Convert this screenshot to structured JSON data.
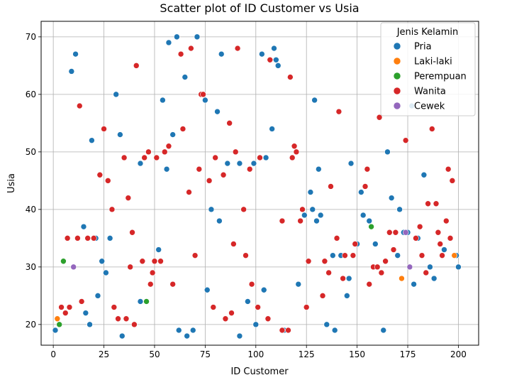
{
  "chart_data": {
    "type": "scatter",
    "title": "Scatter plot of ID Customer vs Usia",
    "xlabel": "ID Customer",
    "ylabel": "Usia",
    "xlim": [
      -6,
      210
    ],
    "ylim": [
      16.4,
      72.7
    ],
    "xticks": [
      0,
      25,
      50,
      75,
      100,
      125,
      150,
      175,
      200
    ],
    "yticks": [
      20,
      30,
      40,
      50,
      60,
      70
    ],
    "grid": true,
    "legend": {
      "title": "Jenis Kelamin",
      "placement": "top-right"
    },
    "series": [
      {
        "name": "Pria",
        "color": "#1f77b4",
        "points": [
          [
            1,
            19
          ],
          [
            9,
            64
          ],
          [
            11,
            67
          ],
          [
            15,
            37
          ],
          [
            16,
            22
          ],
          [
            18,
            20
          ],
          [
            19,
            52
          ],
          [
            21,
            35
          ],
          [
            22,
            25
          ],
          [
            24,
            31
          ],
          [
            26,
            29
          ],
          [
            28,
            35
          ],
          [
            31,
            60
          ],
          [
            33,
            53
          ],
          [
            34,
            18
          ],
          [
            43,
            48
          ],
          [
            43,
            24
          ],
          [
            52,
            33
          ],
          [
            54,
            59
          ],
          [
            56,
            47
          ],
          [
            57,
            69
          ],
          [
            59,
            53
          ],
          [
            61,
            70
          ],
          [
            62,
            19
          ],
          [
            65,
            63
          ],
          [
            66,
            18
          ],
          [
            69,
            19
          ],
          [
            71,
            70
          ],
          [
            75,
            59
          ],
          [
            76,
            26
          ],
          [
            78,
            40
          ],
          [
            81,
            57
          ],
          [
            82,
            38
          ],
          [
            83,
            67
          ],
          [
            86,
            48
          ],
          [
            92,
            18
          ],
          [
            92,
            48
          ],
          [
            96,
            24
          ],
          [
            99,
            48
          ],
          [
            100,
            20
          ],
          [
            103,
            67
          ],
          [
            104,
            26
          ],
          [
            105,
            49
          ],
          [
            108,
            54
          ],
          [
            109,
            68
          ],
          [
            110,
            66
          ],
          [
            111,
            65
          ],
          [
            114,
            19
          ],
          [
            121,
            27
          ],
          [
            124,
            39
          ],
          [
            127,
            43
          ],
          [
            128,
            40
          ],
          [
            129,
            59
          ],
          [
            130,
            38
          ],
          [
            131,
            47
          ],
          [
            132,
            39
          ],
          [
            135,
            20
          ],
          [
            138,
            32
          ],
          [
            139,
            19
          ],
          [
            142,
            32
          ],
          [
            145,
            25
          ],
          [
            146,
            28
          ],
          [
            147,
            48
          ],
          [
            150,
            34
          ],
          [
            152,
            43
          ],
          [
            153,
            39
          ],
          [
            156,
            38
          ],
          [
            159,
            34
          ],
          [
            163,
            19
          ],
          [
            165,
            50
          ],
          [
            167,
            42
          ],
          [
            170,
            32
          ],
          [
            171,
            40
          ],
          [
            173,
            36
          ],
          [
            175,
            36
          ],
          [
            177,
            58
          ],
          [
            178,
            27
          ],
          [
            180,
            35
          ],
          [
            183,
            46
          ],
          [
            186,
            30
          ],
          [
            188,
            28
          ],
          [
            193,
            33
          ],
          [
            199,
            32
          ],
          [
            200,
            30
          ]
        ]
      },
      {
        "name": "Laki-laki",
        "color": "#ff7f0e",
        "points": [
          [
            2,
            21
          ],
          [
            172,
            28
          ],
          [
            198,
            32
          ]
        ]
      },
      {
        "name": "Perempuan",
        "color": "#2ca02c",
        "points": [
          [
            3,
            20
          ],
          [
            5,
            31
          ],
          [
            46,
            24
          ],
          [
            157,
            37
          ]
        ]
      },
      {
        "name": "Wanita",
        "color": "#d62728",
        "points": [
          [
            4,
            23
          ],
          [
            6,
            22
          ],
          [
            7,
            35
          ],
          [
            8,
            23
          ],
          [
            12,
            35
          ],
          [
            13,
            58
          ],
          [
            14,
            24
          ],
          [
            17,
            35
          ],
          [
            20,
            35
          ],
          [
            23,
            46
          ],
          [
            25,
            54
          ],
          [
            27,
            45
          ],
          [
            29,
            40
          ],
          [
            30,
            23
          ],
          [
            32,
            21
          ],
          [
            35,
            49
          ],
          [
            36,
            21
          ],
          [
            37,
            42
          ],
          [
            38,
            30
          ],
          [
            39,
            36
          ],
          [
            40,
            20
          ],
          [
            41,
            65
          ],
          [
            44,
            31
          ],
          [
            45,
            49
          ],
          [
            47,
            50
          ],
          [
            48,
            27
          ],
          [
            49,
            29
          ],
          [
            50,
            31
          ],
          [
            51,
            49
          ],
          [
            53,
            31
          ],
          [
            55,
            50
          ],
          [
            57,
            51
          ],
          [
            59,
            27
          ],
          [
            63,
            67
          ],
          [
            64,
            54
          ],
          [
            67,
            43
          ],
          [
            68,
            68
          ],
          [
            70,
            32
          ],
          [
            72,
            47
          ],
          [
            73,
            60
          ],
          [
            74,
            60
          ],
          [
            77,
            45
          ],
          [
            79,
            23
          ],
          [
            80,
            49
          ],
          [
            84,
            46
          ],
          [
            85,
            21
          ],
          [
            87,
            55
          ],
          [
            88,
            22
          ],
          [
            89,
            34
          ],
          [
            90,
            50
          ],
          [
            91,
            68
          ],
          [
            94,
            40
          ],
          [
            95,
            32
          ],
          [
            97,
            47
          ],
          [
            98,
            27
          ],
          [
            101,
            23
          ],
          [
            102,
            49
          ],
          [
            106,
            21
          ],
          [
            107,
            66
          ],
          [
            113,
            19
          ],
          [
            113,
            38
          ],
          [
            116,
            19
          ],
          [
            117,
            63
          ],
          [
            118,
            49
          ],
          [
            119,
            51
          ],
          [
            120,
            50
          ],
          [
            122,
            38
          ],
          [
            123,
            40
          ],
          [
            125,
            23
          ],
          [
            126,
            31
          ],
          [
            133,
            25
          ],
          [
            134,
            31
          ],
          [
            136,
            29
          ],
          [
            137,
            44
          ],
          [
            140,
            35
          ],
          [
            141,
            57
          ],
          [
            143,
            28
          ],
          [
            144,
            32
          ],
          [
            148,
            32
          ],
          [
            149,
            34
          ],
          [
            154,
            44
          ],
          [
            155,
            47
          ],
          [
            156,
            27
          ],
          [
            158,
            30
          ],
          [
            160,
            30
          ],
          [
            161,
            56
          ],
          [
            162,
            29
          ],
          [
            164,
            31
          ],
          [
            166,
            36
          ],
          [
            168,
            33
          ],
          [
            169,
            36
          ],
          [
            174,
            52
          ],
          [
            176,
            30
          ],
          [
            179,
            35
          ],
          [
            181,
            37
          ],
          [
            182,
            32
          ],
          [
            184,
            29
          ],
          [
            185,
            41
          ],
          [
            187,
            54
          ],
          [
            189,
            41
          ],
          [
            190,
            36
          ],
          [
            191,
            34
          ],
          [
            192,
            32
          ],
          [
            194,
            38
          ],
          [
            195,
            47
          ],
          [
            196,
            35
          ],
          [
            197,
            45
          ]
        ]
      },
      {
        "name": "Cewek",
        "color": "#9467bd",
        "points": [
          [
            10,
            30
          ],
          [
            174,
            36
          ],
          [
            176,
            30
          ]
        ]
      }
    ]
  }
}
